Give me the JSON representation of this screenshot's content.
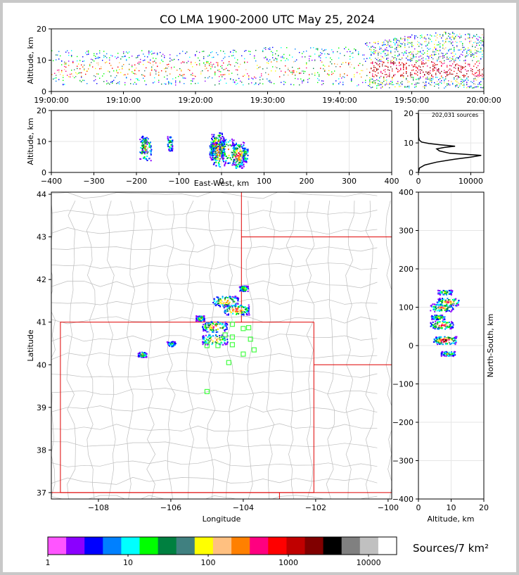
{
  "chart_data": [
    {
      "type": "scatter",
      "panel": "time-altitude",
      "title": "CO LMA 1900-2000 UTC May 25, 2024",
      "ylabel": "Altitude, km",
      "ylim": [
        0,
        20
      ],
      "yticks": [
        "0",
        "10",
        "20"
      ],
      "xticks": [
        "19:00:00",
        "19:10:00",
        "19:20:00",
        "19:30:00",
        "19:40:00",
        "19:50:00",
        "20:00:00"
      ],
      "x_minutes": [
        0,
        10,
        20,
        30,
        40,
        50,
        60
      ],
      "activity": [
        {
          "minute": 0,
          "alt_low": 2,
          "alt_high": 13
        },
        {
          "minute": 10,
          "alt_low": 2,
          "alt_high": 13
        },
        {
          "minute": 20,
          "alt_low": 2,
          "alt_high": 13
        },
        {
          "minute": 30,
          "alt_low": 2,
          "alt_high": 14
        },
        {
          "minute": 40,
          "alt_low": 2,
          "alt_high": 14
        },
        {
          "minute": 45,
          "alt_low": 1,
          "alt_high": 16
        },
        {
          "minute": 50,
          "alt_low": 1,
          "alt_high": 18
        },
        {
          "minute": 55,
          "alt_low": 1,
          "alt_high": 19
        },
        {
          "minute": 60,
          "alt_low": 1,
          "alt_high": 18
        }
      ]
    },
    {
      "type": "heatmap",
      "panel": "east-west-altitude",
      "xlabel": "East-West, km",
      "ylabel": "Altitude, km",
      "xlim": [
        -400,
        400
      ],
      "ylim": [
        0,
        20
      ],
      "xticks": [
        "−400",
        "−300",
        "−200",
        "−100",
        "0",
        "100",
        "200",
        "300",
        "400"
      ],
      "yticks": [
        "0",
        "10",
        "20"
      ],
      "cells": [
        {
          "x": -182,
          "y": 9,
          "level": 9
        },
        {
          "x": -180,
          "y": 8,
          "level": 11
        },
        {
          "x": -122,
          "y": 9.5,
          "level": 8
        },
        {
          "x": -20,
          "y": 7,
          "level": 10
        },
        {
          "x": -15,
          "y": 8,
          "level": 14
        },
        {
          "x": -10,
          "y": 9,
          "level": 15
        },
        {
          "x": -8,
          "y": 6,
          "level": 12
        },
        {
          "x": 0,
          "y": 8,
          "level": 10
        },
        {
          "x": 15,
          "y": 7,
          "level": 11
        },
        {
          "x": 35,
          "y": 5.5,
          "level": 14
        },
        {
          "x": 40,
          "y": 6,
          "level": 13
        },
        {
          "x": 55,
          "y": 6,
          "level": 9
        }
      ]
    },
    {
      "type": "line",
      "panel": "altitude-histogram",
      "annotation": "202,031 sources",
      "xlim": [
        0,
        12500
      ],
      "ylim": [
        0,
        21
      ],
      "xticks": [
        "0",
        "10000"
      ],
      "yticks": [
        "0",
        "10",
        "20"
      ],
      "x": [
        0,
        200,
        1200,
        3500,
        7000,
        10000,
        12000,
        6000,
        4000,
        3500,
        5000,
        7000,
        4000,
        2000,
        600,
        150,
        30,
        0
      ],
      "y": [
        0,
        1.5,
        2.5,
        3.5,
        4.5,
        5.2,
        5.8,
        6.5,
        7.3,
        8.0,
        8.5,
        8.9,
        9.4,
        9.8,
        10.3,
        11,
        12,
        20
      ]
    },
    {
      "type": "heatmap",
      "panel": "plan-view",
      "xlabel": "Longitude",
      "ylabel": "Latitude",
      "xlim": [
        -109.3,
        -99.9
      ],
      "ylim": [
        36.85,
        44.05
      ],
      "xticks": [
        "−108",
        "−106",
        "−104",
        "−102",
        "−100"
      ],
      "yticks": [
        "37",
        "38",
        "39",
        "40",
        "41",
        "42",
        "43",
        "44"
      ],
      "cells": [
        {
          "lon": -104.0,
          "lat": 41.8,
          "level": 9
        },
        {
          "lon": -104.5,
          "lat": 41.5,
          "level": 12
        },
        {
          "lon": -104.2,
          "lat": 41.3,
          "level": 13
        },
        {
          "lon": -105.2,
          "lat": 41.1,
          "level": 9
        },
        {
          "lon": -104.8,
          "lat": 40.9,
          "level": 12
        },
        {
          "lon": -104.8,
          "lat": 40.6,
          "level": 11
        },
        {
          "lon": -106.8,
          "lat": 40.25,
          "level": 9
        },
        {
          "lon": -106.0,
          "lat": 40.5,
          "level": 6
        }
      ],
      "stations": [
        {
          "lon": -104.3,
          "lat": 40.95
        },
        {
          "lon": -104.0,
          "lat": 40.85
        },
        {
          "lon": -103.85,
          "lat": 40.87
        },
        {
          "lon": -104.5,
          "lat": 40.7
        },
        {
          "lon": -104.3,
          "lat": 40.65
        },
        {
          "lon": -103.8,
          "lat": 40.6
        },
        {
          "lon": -104.7,
          "lat": 40.45
        },
        {
          "lon": -105.0,
          "lat": 40.45
        },
        {
          "lon": -104.3,
          "lat": 40.47
        },
        {
          "lon": -103.7,
          "lat": 40.35
        },
        {
          "lon": -104.0,
          "lat": 40.25
        },
        {
          "lon": -104.4,
          "lat": 40.05
        },
        {
          "lon": -105.0,
          "lat": 39.37
        }
      ]
    },
    {
      "type": "heatmap",
      "panel": "north-south-altitude",
      "xlabel": "Altitude, km",
      "ylabel": "North-South, km",
      "xlim": [
        0,
        20
      ],
      "ylim": [
        -400,
        400
      ],
      "xticks": [
        "0",
        "10",
        "20"
      ],
      "yticks": [
        "400",
        "300",
        "200",
        "100",
        "0",
        "−100",
        "−200",
        "−300",
        "−400"
      ],
      "cells": [
        {
          "alt": 8,
          "ns": 140,
          "level": 9
        },
        {
          "alt": 9,
          "ns": 115,
          "level": 12
        },
        {
          "alt": 7,
          "ns": 100,
          "level": 11
        },
        {
          "alt": 6,
          "ns": 75,
          "level": 9
        },
        {
          "alt": 7,
          "ns": 55,
          "level": 13
        },
        {
          "alt": 8,
          "ns": 15,
          "level": 16
        },
        {
          "alt": 9,
          "ns": -20,
          "level": 8
        }
      ]
    },
    {
      "type": "colorbar",
      "panel": "colorbar",
      "label": "Sources/7 km²",
      "tick_labels": [
        "1",
        "10",
        "100",
        "1000",
        "10000"
      ],
      "colors": [
        "#ff55ff",
        "#8b00ff",
        "#0000ff",
        "#0080ff",
        "#00ffff",
        "#00ff00",
        "#008040",
        "#408080",
        "#ffff00",
        "#ffc080",
        "#ff8000",
        "#ff0080",
        "#ff0000",
        "#c00000",
        "#800000",
        "#000000",
        "#808080",
        "#c0c0c0",
        "#ffffff"
      ]
    }
  ]
}
